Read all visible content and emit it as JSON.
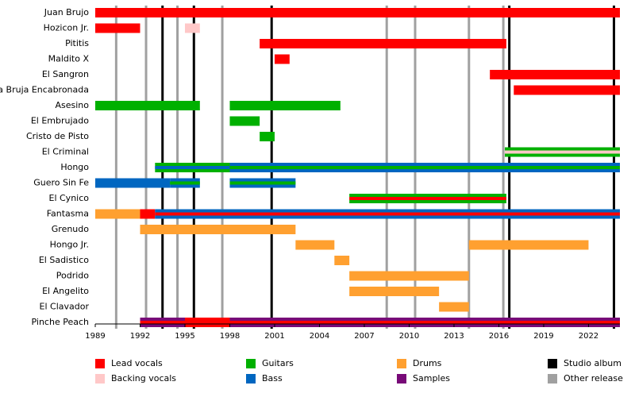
{
  "chart_data": {
    "type": "timeline",
    "xlim": [
      1989,
      2024.1
    ],
    "xticks": [
      1989,
      1992,
      1995,
      1998,
      2001,
      2004,
      2007,
      2010,
      2013,
      2016,
      2019,
      2022
    ],
    "roles": [
      {
        "name": "Lead vocals",
        "color": "#ff0000"
      },
      {
        "name": "Backing vocals",
        "color": "#ffc8c8"
      },
      {
        "name": "Guitars",
        "color": "#00b000"
      },
      {
        "name": "Bass",
        "color": "#0066c0"
      },
      {
        "name": "Drums",
        "color": "#ffa030"
      },
      {
        "name": "Samples",
        "color": "#780a78"
      }
    ],
    "events": [
      {
        "name": "Studio album",
        "color": "#000000",
        "years": [
          1993.5,
          1995.6,
          2000.8,
          2016.7,
          2023.7
        ]
      },
      {
        "name": "Other release",
        "color": "#a0a0a0",
        "years": [
          1990.4,
          1992.4,
          1994.5,
          1997.5,
          2008.5,
          2010.4,
          2014.0,
          2016.3
        ]
      }
    ],
    "members": [
      {
        "name": "Juan Brujo",
        "segments": [
          {
            "start": 1989,
            "end": 2024.1,
            "roles": [
              0
            ]
          }
        ]
      },
      {
        "name": "Hozicon Jr.",
        "segments": [
          {
            "start": 1989,
            "end": 1992,
            "roles": [
              0
            ]
          },
          {
            "start": 1995,
            "end": 1996,
            "roles": [
              1
            ]
          }
        ]
      },
      {
        "name": "Pititis",
        "segments": [
          {
            "start": 2000,
            "end": 2016.5,
            "roles": [
              0
            ]
          }
        ]
      },
      {
        "name": "Maldito X",
        "segments": [
          {
            "start": 2001,
            "end": 2002,
            "roles": [
              0
            ]
          }
        ]
      },
      {
        "name": "El Sangron",
        "segments": [
          {
            "start": 2015.4,
            "end": 2024.1,
            "roles": [
              0
            ]
          }
        ]
      },
      {
        "name": "La Bruja Encabronada",
        "segments": [
          {
            "start": 2017,
            "end": 2024.1,
            "roles": [
              0
            ]
          }
        ]
      },
      {
        "name": "Asesino",
        "segments": [
          {
            "start": 1989,
            "end": 1996,
            "roles": [
              2
            ]
          },
          {
            "start": 1998,
            "end": 2005.4,
            "roles": [
              2
            ]
          }
        ]
      },
      {
        "name": "El Embrujado",
        "segments": [
          {
            "start": 1998,
            "end": 2000,
            "roles": [
              2
            ]
          }
        ]
      },
      {
        "name": "Cristo de Pisto",
        "segments": [
          {
            "start": 2000,
            "end": 2001,
            "roles": [
              2
            ]
          }
        ]
      },
      {
        "name": "El Criminal",
        "segments": [
          {
            "start": 2016.4,
            "end": 2024.1,
            "roles": [
              2,
              1
            ]
          }
        ]
      },
      {
        "name": "Hongo",
        "segments": [
          {
            "start": 1993,
            "end": 1998,
            "roles": [
              2,
              3
            ]
          },
          {
            "start": 1998,
            "end": 2024.1,
            "roles": [
              3,
              2
            ]
          }
        ]
      },
      {
        "name": "Guero Sin Fe",
        "segments": [
          {
            "start": 1989,
            "end": 1994,
            "roles": [
              3
            ]
          },
          {
            "start": 1994,
            "end": 1996,
            "roles": [
              3,
              2
            ]
          },
          {
            "start": 1998,
            "end": 2002.4,
            "roles": [
              3,
              2
            ]
          }
        ]
      },
      {
        "name": "El Cynico",
        "segments": [
          {
            "start": 2006,
            "end": 2016.5,
            "roles": [
              2,
              0
            ]
          }
        ]
      },
      {
        "name": "Fantasma",
        "segments": [
          {
            "start": 1989,
            "end": 1992,
            "roles": [
              4
            ]
          },
          {
            "start": 1992,
            "end": 1993,
            "roles": [
              0
            ]
          },
          {
            "start": 1993,
            "end": 2024.1,
            "roles": [
              3,
              0
            ]
          }
        ]
      },
      {
        "name": "Grenudo",
        "segments": [
          {
            "start": 1992,
            "end": 2002.4,
            "roles": [
              4
            ]
          }
        ]
      },
      {
        "name": "Hongo Jr.",
        "segments": [
          {
            "start": 2002.4,
            "end": 2005,
            "roles": [
              4
            ]
          },
          {
            "start": 2014,
            "end": 2022,
            "roles": [
              4
            ]
          }
        ]
      },
      {
        "name": "El Sadistico",
        "segments": [
          {
            "start": 2005,
            "end": 2006,
            "roles": [
              4
            ]
          }
        ]
      },
      {
        "name": "Podrido",
        "segments": [
          {
            "start": 2006,
            "end": 2014,
            "roles": [
              4
            ]
          }
        ]
      },
      {
        "name": "El Angelito",
        "segments": [
          {
            "start": 2006,
            "end": 2012,
            "roles": [
              4
            ]
          }
        ]
      },
      {
        "name": "El Clavador",
        "segments": [
          {
            "start": 2012,
            "end": 2014,
            "roles": [
              4
            ]
          }
        ]
      },
      {
        "name": "Pinche Peach",
        "segments": [
          {
            "start": 1992,
            "end": 1995,
            "roles": [
              5,
              0
            ]
          },
          {
            "start": 1995,
            "end": 1998,
            "roles": [
              0
            ]
          },
          {
            "start": 1998,
            "end": 2024.1,
            "roles": [
              5,
              0
            ]
          }
        ]
      }
    ]
  }
}
